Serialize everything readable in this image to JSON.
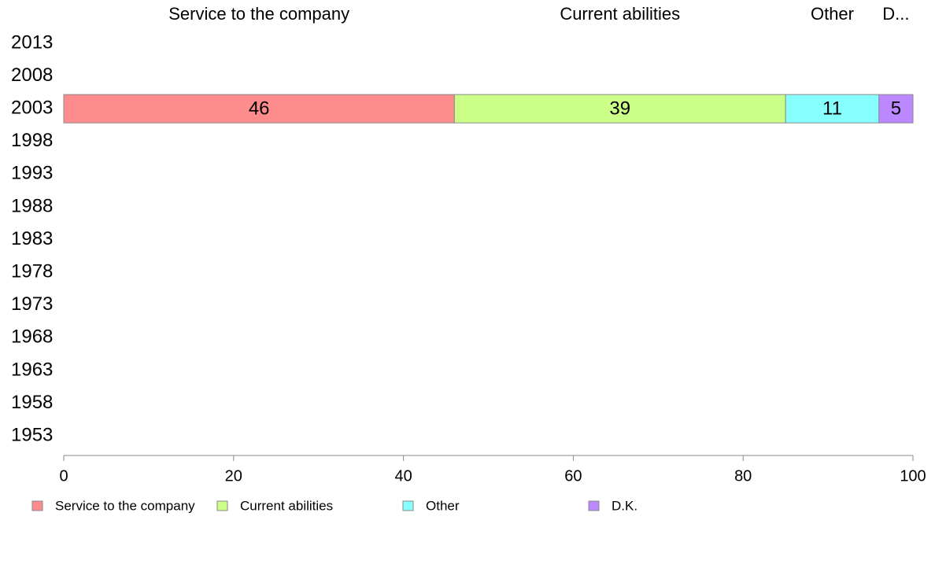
{
  "chart_data": {
    "type": "bar",
    "orientation": "horizontal",
    "stacked": true,
    "categories": [
      "2013",
      "2008",
      "2003",
      "1998",
      "1993",
      "1988",
      "1983",
      "1978",
      "1973",
      "1968",
      "1963",
      "1958",
      "1953"
    ],
    "series": [
      {
        "name": "Service to the company",
        "header_label": "Service to the company",
        "color": "#ff8c8c",
        "values": [
          null,
          null,
          46,
          null,
          null,
          null,
          null,
          null,
          null,
          null,
          null,
          null,
          null
        ]
      },
      {
        "name": "Current abilities",
        "header_label": "Current abilities",
        "color": "#ccff88",
        "values": [
          null,
          null,
          39,
          null,
          null,
          null,
          null,
          null,
          null,
          null,
          null,
          null,
          null
        ]
      },
      {
        "name": "Other",
        "header_label": "Other",
        "color": "#88ffff",
        "values": [
          null,
          null,
          11,
          null,
          null,
          null,
          null,
          null,
          null,
          null,
          null,
          null,
          null
        ]
      },
      {
        "name": "D.K.",
        "header_label": "D...",
        "color": "#bb88ff",
        "values": [
          null,
          null,
          5,
          null,
          null,
          null,
          null,
          null,
          null,
          null,
          null,
          null,
          null
        ]
      }
    ],
    "data_labels": [
      "46",
      "39",
      "11",
      "5"
    ],
    "xlim": [
      0,
      100
    ],
    "x_ticks": [
      "0",
      "20",
      "40",
      "60",
      "80",
      "100"
    ],
    "grid": false,
    "legend_position": "bottom"
  }
}
